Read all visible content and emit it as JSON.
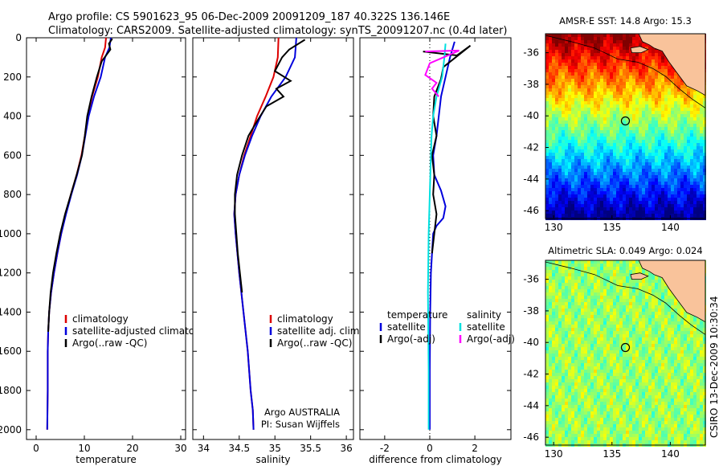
{
  "header": {
    "line1": "Argo profile: CS 5901623_95 06-Dec-2009 20091209_187 40.322S 136.146E",
    "line2": "Climatology: CARS2009. Satellite-adjusted climatology: synTS_20091207.nc (0.4d later)"
  },
  "footer": {
    "credit": "CSIRO 13-Dec-2009 10:30:34"
  },
  "colors": {
    "red": "#dd0000",
    "blue": "#0000dd",
    "black": "#000000",
    "cyan": "#00e0e0",
    "magenta": "#ff00ff",
    "land": "#f9c39b"
  },
  "chart_data": [
    {
      "type": "line",
      "id": "temperature",
      "xlabel": "temperature",
      "ylabel": "",
      "xlim": [
        -2,
        31
      ],
      "ylim": [
        2050,
        0
      ],
      "xticks": [
        0,
        10,
        20,
        30
      ],
      "yticks": [
        0,
        200,
        400,
        600,
        800,
        1000,
        1200,
        1400,
        1600,
        1800,
        2000
      ],
      "grid": false,
      "legend_position": "lower-right",
      "legend": [
        "climatology",
        "satellite-adjusted climatology",
        "Argo(..raw -QC)"
      ],
      "series": [
        {
          "name": "climatology",
          "color": "red",
          "x": [
            14.5,
            14.3,
            13.6,
            12.8,
            11.6,
            10.7,
            10.1,
            9.4,
            8.4,
            7.2,
            6.1,
            5.2,
            4.4,
            3.7,
            3.1,
            2.7,
            2.5,
            2.4,
            2.4,
            2.3
          ],
          "y": [
            0,
            50,
            100,
            200,
            300,
            400,
            500,
            600,
            700,
            800,
            900,
            1000,
            1100,
            1200,
            1300,
            1400,
            1500,
            1600,
            1800,
            2000
          ]
        },
        {
          "name": "satellite-adjusted climatology",
          "color": "blue",
          "x": [
            15.5,
            15.2,
            14.3,
            13.4,
            12.0,
            10.9,
            10.2,
            9.5,
            8.5,
            7.3,
            6.2,
            5.2,
            4.4,
            3.7,
            3.1,
            2.7,
            2.5,
            2.4,
            2.4,
            2.3
          ],
          "y": [
            0,
            50,
            100,
            200,
            300,
            400,
            500,
            600,
            700,
            800,
            900,
            1000,
            1100,
            1200,
            1300,
            1400,
            1500,
            1600,
            1800,
            2000
          ]
        },
        {
          "name": "Argo(..raw -QC)",
          "color": "black",
          "x": [
            15.8,
            15.1,
            15.4,
            13.6,
            12.6,
            11.5,
            10.6,
            10.1,
            9.5,
            8.4,
            7.2,
            6.0,
            5.0,
            4.2,
            3.5,
            3.0,
            2.7,
            2.5
          ],
          "y": [
            5,
            30,
            60,
            120,
            200,
            300,
            400,
            500,
            600,
            700,
            800,
            900,
            1000,
            1100,
            1200,
            1300,
            1400,
            1500
          ]
        }
      ]
    },
    {
      "type": "line",
      "id": "salinity",
      "xlabel": "salinity",
      "xlim": [
        33.85,
        36.1
      ],
      "ylim": [
        2050,
        0
      ],
      "xticks": [
        34,
        34.5,
        35,
        35.5,
        36
      ],
      "grid": false,
      "legend_position": "lower-right",
      "legend": [
        "climatology",
        "satellite adj. clim.",
        "Argo(..raw -QC)"
      ],
      "annotation": [
        "Argo AUSTRALIA",
        "PI: Susan Wijffels"
      ],
      "series": [
        {
          "name": "climatology",
          "color": "red",
          "x": [
            35.05,
            35.04,
            34.98,
            34.87,
            34.75,
            34.66,
            34.57,
            34.5,
            34.45,
            34.43,
            34.45,
            34.5,
            34.56,
            34.62,
            34.66,
            34.69,
            34.7
          ],
          "y": [
            0,
            100,
            200,
            300,
            400,
            500,
            600,
            700,
            800,
            900,
            1000,
            1200,
            1400,
            1600,
            1800,
            1900,
            2000
          ]
        },
        {
          "name": "satellite adj. clim.",
          "color": "blue",
          "x": [
            35.3,
            35.28,
            35.15,
            34.95,
            34.8,
            34.68,
            34.58,
            34.5,
            34.45,
            34.43,
            34.45,
            34.5,
            34.56,
            34.62,
            34.66,
            34.69,
            34.7
          ],
          "y": [
            0,
            100,
            200,
            300,
            400,
            500,
            600,
            700,
            800,
            900,
            1000,
            1200,
            1400,
            1600,
            1800,
            1900,
            2000
          ]
        },
        {
          "name": "Argo(..raw -QC)",
          "color": "black",
          "x": [
            35.42,
            35.2,
            35.1,
            35.0,
            35.22,
            35.02,
            35.12,
            34.88,
            34.76,
            34.63,
            34.54,
            34.47,
            34.44,
            34.44,
            34.48,
            34.54
          ],
          "y": [
            10,
            60,
            100,
            170,
            220,
            260,
            300,
            350,
            420,
            500,
            600,
            700,
            800,
            900,
            1100,
            1300
          ]
        }
      ]
    },
    {
      "type": "line",
      "id": "difference",
      "xlabel": "difference from climatology",
      "xlim": [
        -3.1,
        3.6
      ],
      "ylim": [
        2050,
        0
      ],
      "xticks": [
        -2,
        0,
        2
      ],
      "grid": false,
      "legend_position": "lower-right",
      "legend": [
        "temperature",
        "satellite",
        "Argo(-adj)",
        "salinity",
        "satellite",
        "Argo(-adj)"
      ],
      "series": [
        {
          "name": "temperature satellite",
          "color": "blue",
          "x": [
            1.1,
            0.9,
            0.7,
            0.5,
            0.4,
            0.3,
            0.15,
            0.2,
            0.5,
            0.7,
            0.6,
            0.3,
            0.15,
            0.1,
            0.05,
            0.02,
            0.0,
            0.0
          ],
          "y": [
            20,
            100,
            200,
            300,
            400,
            500,
            600,
            700,
            780,
            860,
            920,
            960,
            1000,
            1100,
            1200,
            1400,
            1700,
            2000
          ]
        },
        {
          "name": "temperature Argo(-adj)",
          "color": "black",
          "x": [
            -0.3,
            1.2,
            1.8,
            0.6,
            0.5,
            0.2,
            0.15,
            0.3,
            0.1,
            0.2,
            0.15,
            0.3,
            0.2,
            0.1
          ],
          "y": [
            70,
            90,
            40,
            150,
            210,
            300,
            400,
            500,
            600,
            700,
            800,
            900,
            1000,
            1100
          ]
        },
        {
          "name": "salinity satellite",
          "color": "cyan",
          "x": [
            0.7,
            0.65,
            0.55,
            0.3,
            0.15,
            0.08,
            0.05,
            0.0,
            -0.05,
            -0.08,
            -0.05,
            -0.05
          ],
          "y": [
            30,
            100,
            200,
            300,
            400,
            500,
            600,
            800,
            1000,
            1300,
            1700,
            2000
          ]
        },
        {
          "name": "salinity Argo(-adj)",
          "color": "magenta",
          "x": [
            -0.2,
            1.3,
            0.0,
            -0.2,
            0.3,
            0.1,
            0.4
          ],
          "y": [
            70,
            65,
            130,
            190,
            230,
            260,
            300
          ]
        }
      ]
    },
    {
      "type": "heatmap",
      "id": "sst",
      "title": "AMSR-E SST: 14.8 Argo: 15.3",
      "xlim": [
        129.3,
        143
      ],
      "ylim": [
        -46.5,
        -34.8
      ],
      "xticks": [
        130,
        135,
        140
      ],
      "yticks": [
        -36,
        -38,
        -40,
        -42,
        -44,
        -46
      ],
      "argo_position": [
        136.15,
        -40.32
      ],
      "colorscale": "jet"
    },
    {
      "type": "heatmap",
      "id": "sla",
      "title": "Altimetric SLA: 0.049 Argo: 0.024",
      "xlim": [
        129.3,
        143
      ],
      "ylim": [
        -46.5,
        -34.8
      ],
      "xticks": [
        130,
        135,
        140
      ],
      "yticks": [
        -36,
        -38,
        -40,
        -42,
        -44,
        -46
      ],
      "argo_position": [
        136.15,
        -40.32
      ],
      "colorscale": "jet"
    }
  ]
}
